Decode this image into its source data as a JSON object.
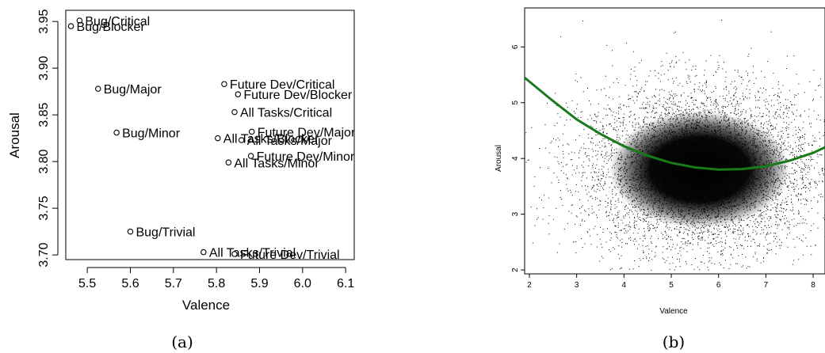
{
  "chart_data": [
    {
      "type": "scatter",
      "caption": "(a)",
      "xlabel": "Valence",
      "ylabel": "Arousal",
      "xlim": [
        5.45,
        6.12
      ],
      "ylim": [
        3.695,
        3.962
      ],
      "xticks": [
        "5.5",
        "5.6",
        "5.7",
        "5.8",
        "5.9",
        "6.0",
        "6.1"
      ],
      "yticks": [
        "3.70",
        "3.75",
        "3.80",
        "3.85",
        "3.90",
        "3.95"
      ],
      "xtick_values": [
        5.5,
        5.6,
        5.7,
        5.8,
        5.9,
        6.0,
        6.1
      ],
      "ytick_values": [
        3.7,
        3.75,
        3.8,
        3.85,
        3.9,
        3.95
      ],
      "points": [
        {
          "label": "Bug/Critical",
          "x": 5.482,
          "y": 3.951
        },
        {
          "label": "Bug/Blocker",
          "x": 5.462,
          "y": 3.945
        },
        {
          "label": "Bug/Major",
          "x": 5.525,
          "y": 3.878
        },
        {
          "label": "Bug/Minor",
          "x": 5.568,
          "y": 3.831
        },
        {
          "label": "Bug/Trivial",
          "x": 5.6,
          "y": 3.725
        },
        {
          "label": "Future Dev/Critical",
          "x": 5.818,
          "y": 3.883
        },
        {
          "label": "Future Dev/Blocker",
          "x": 5.85,
          "y": 3.872
        },
        {
          "label": "All Tasks/Critical",
          "x": 5.842,
          "y": 3.853
        },
        {
          "label": "Future Dev/Major",
          "x": 5.882,
          "y": 3.832
        },
        {
          "label": "All Tasks/Blocker",
          "x": 5.803,
          "y": 3.825
        },
        {
          "label": "All Tasks/Major",
          "x": 5.858,
          "y": 3.823
        },
        {
          "label": "Future Dev/Minor",
          "x": 5.88,
          "y": 3.806
        },
        {
          "label": "All Tasks/Minor",
          "x": 5.828,
          "y": 3.799
        },
        {
          "label": "All Tasks/Trivial",
          "x": 5.77,
          "y": 3.703
        },
        {
          "label": "Future Dev/Trivial",
          "x": 5.842,
          "y": 3.701
        }
      ]
    },
    {
      "type": "scatter",
      "caption": "(b)",
      "xlabel": "Valence",
      "ylabel": "Arousal",
      "xlim": [
        1.9,
        8.25
      ],
      "ylim": [
        1.93,
        6.7
      ],
      "xticks": [
        "2",
        "3",
        "4",
        "5",
        "6",
        "7",
        "8"
      ],
      "yticks": [
        "2",
        "3",
        "4",
        "5",
        "6"
      ],
      "xtick_values": [
        2,
        3,
        4,
        5,
        6,
        7,
        8
      ],
      "ytick_values": [
        2,
        3,
        4,
        5,
        6
      ],
      "point_color": "#000000",
      "cloud_center": {
        "x": 5.6,
        "y": 3.8
      },
      "cloud_extent": {
        "x": [
          1.9,
          8.25
        ],
        "y": [
          2.0,
          6.6
        ]
      },
      "fit_curve": {
        "color": "#1a7a1a",
        "points": [
          [
            1.9,
            5.45
          ],
          [
            2.5,
            5.03
          ],
          [
            3,
            4.7
          ],
          [
            3.5,
            4.44
          ],
          [
            4,
            4.22
          ],
          [
            4.5,
            4.05
          ],
          [
            5,
            3.92
          ],
          [
            5.5,
            3.84
          ],
          [
            6,
            3.8
          ],
          [
            6.5,
            3.81
          ],
          [
            7,
            3.86
          ],
          [
            7.5,
            3.96
          ],
          [
            8,
            4.1
          ],
          [
            8.25,
            4.2
          ]
        ]
      }
    }
  ]
}
